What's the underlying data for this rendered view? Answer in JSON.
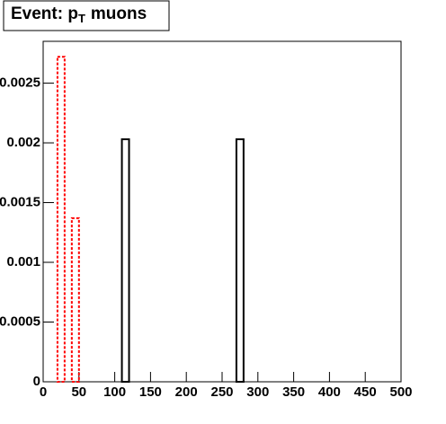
{
  "chart_data": {
    "type": "histogram",
    "title": {
      "main": "Event: p",
      "subscript": "T",
      "rest": "muons"
    },
    "bins": [
      0,
      10,
      20,
      30,
      40,
      50,
      60,
      70,
      80,
      90,
      100,
      110,
      120,
      130,
      140,
      150,
      160,
      170,
      180,
      190,
      200,
      210,
      220,
      230,
      240,
      250,
      260,
      270,
      280,
      290,
      300,
      310,
      320,
      330,
      340,
      350,
      360,
      370,
      380,
      390,
      400,
      410,
      420,
      430,
      440,
      450,
      460,
      470,
      480,
      490,
      500
    ],
    "series": [
      {
        "color": "#000000",
        "line_style": "solid",
        "values": [
          0,
          0,
          0,
          0,
          0,
          0,
          0,
          0,
          0,
          0,
          0,
          0.00203,
          0,
          0,
          0,
          0,
          0,
          0,
          0,
          0,
          0,
          0,
          0,
          0,
          0,
          0,
          0,
          0.00203,
          0,
          0,
          0,
          0,
          0,
          0,
          0,
          0,
          0,
          0,
          0,
          0,
          0,
          0,
          0,
          0,
          0,
          0,
          0,
          0,
          0,
          0
        ]
      },
      {
        "color": "#ff0000",
        "line_style": "dotted",
        "values": [
          0,
          0,
          0.00272,
          0,
          0.00137,
          0,
          0,
          0,
          0,
          0,
          0,
          0,
          0,
          0,
          0,
          0,
          0,
          0,
          0,
          0,
          0,
          0,
          0,
          0,
          0,
          0,
          0,
          0,
          0,
          0,
          0,
          0,
          0,
          0,
          0,
          0,
          0,
          0,
          0,
          0,
          0,
          0,
          0,
          0,
          0,
          0,
          0,
          0,
          0,
          0
        ]
      }
    ],
    "xlim": [
      0,
      500
    ],
    "xticks": [
      0,
      50,
      100,
      150,
      200,
      250,
      300,
      350,
      400,
      450,
      500
    ],
    "ylim": [
      0,
      0.00285
    ],
    "yticks": [
      0,
      0.0005,
      0.001,
      0.0015,
      0.002,
      0.0025
    ]
  }
}
